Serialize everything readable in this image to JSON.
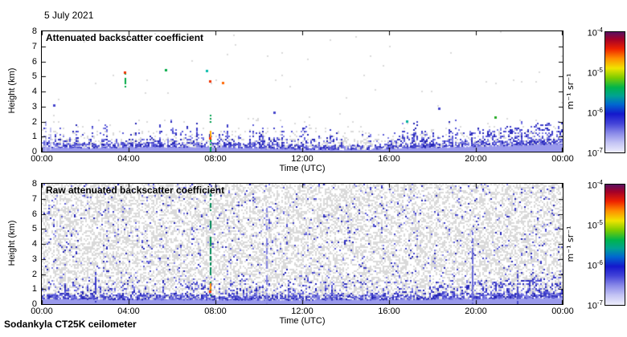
{
  "header": {
    "date_label": "5 July 2021"
  },
  "footer": {
    "instrument_label": "Sodankyla CT25K ceilometer"
  },
  "chart_data": [
    {
      "type": "heatmap",
      "title": "Attenuated backscatter coefficient",
      "xlabel": "Time (UTC)",
      "ylabel": "Height (km)",
      "x_ticks": [
        "00:00",
        "04:00",
        "08:00",
        "12:00",
        "16:00",
        "20:00",
        "00:00"
      ],
      "y_ticks": [
        "0",
        "1",
        "2",
        "3",
        "4",
        "5",
        "6",
        "7",
        "8"
      ],
      "xlim_hours": [
        0,
        24
      ],
      "ylim_km": [
        0,
        8
      ],
      "grid": false,
      "colorbar": {
        "unit": "m⁻¹ sr⁻¹",
        "tick_base": "10",
        "tick_exponents": [
          "-4",
          "-5",
          "-6",
          "-7"
        ],
        "scale": "log",
        "range": [
          1e-07,
          0.0001
        ],
        "gradient_stops": [
          [
            0.0,
            "#eeeefc"
          ],
          [
            0.08,
            "#c4c4f4"
          ],
          [
            0.16,
            "#8a8ae8"
          ],
          [
            0.24,
            "#4444d8"
          ],
          [
            0.32,
            "#1418cc"
          ],
          [
            0.4,
            "#0068d0"
          ],
          [
            0.47,
            "#00a292"
          ],
          [
            0.54,
            "#00b44c"
          ],
          [
            0.62,
            "#7ccc00"
          ],
          [
            0.7,
            "#f0e400"
          ],
          [
            0.78,
            "#ff9000"
          ],
          [
            0.86,
            "#ee2200"
          ],
          [
            0.94,
            "#a40028"
          ],
          [
            1.0,
            "#5a1060"
          ]
        ]
      },
      "render": {
        "seed": 42,
        "cell": 2,
        "gray_color": "#d9d9d9",
        "band_color": "#9a9aec",
        "blue_colors": [
          "#2222b4",
          "#3c3cc8",
          "#5a5ad8",
          "#8080e4"
        ],
        "gray_profile": [
          [
            0,
            0.45,
            0.5
          ],
          [
            0.45,
            0.9,
            0.28
          ],
          [
            0.9,
            1.4,
            0.1
          ],
          [
            1.4,
            2.2,
            0.02
          ],
          [
            2.2,
            8,
            0.003
          ]
        ],
        "blue_profile": [
          [
            0,
            0.35,
            0.22
          ],
          [
            0.35,
            0.8,
            0.1
          ],
          [
            0.8,
            1.4,
            0.04
          ],
          [
            1.4,
            8,
            0.0
          ]
        ],
        "spikes": {
          "count": 240,
          "hmin": 0.7,
          "hmax": 2.6,
          "density": 0.45
        },
        "quiet": {
          "t0": 12.4,
          "t1": 15.6,
          "factor": 0.35
        },
        "right_boost": {
          "t0": 15,
          "t1": 24,
          "density": 0.3,
          "h0": 1.0,
          "h1": 2.0
        },
        "band_edge_blue": 0.45,
        "band_profile": [
          [
            0,
            0.3
          ],
          [
            2,
            0.22
          ],
          [
            5,
            0.3
          ],
          [
            8,
            0.28
          ],
          [
            11,
            0.18
          ],
          [
            13,
            0.1
          ],
          [
            15,
            0.12
          ],
          [
            17,
            0.25
          ],
          [
            19,
            0.3
          ],
          [
            21,
            0.38
          ],
          [
            24,
            0.5
          ]
        ],
        "features": [
          {
            "kind": "vline",
            "t": 0.14,
            "h0": 0,
            "h1": 2.0,
            "color": "#b4b4f0",
            "dash": true
          },
          {
            "kind": "vline",
            "t": 0.38,
            "h0": 0,
            "h1": 1.7,
            "color": "#c2c2f2",
            "dash": true
          },
          {
            "kind": "vline",
            "t": 3.82,
            "h0": 4.3,
            "h1": 5.2,
            "color": "#00aa44",
            "dash": true
          },
          {
            "kind": "dot",
            "t": 3.82,
            "h": 5.3,
            "color": "#ee3300"
          },
          {
            "kind": "dot",
            "t": 5.7,
            "h": 5.45,
            "color": "#00aa44"
          },
          {
            "kind": "dot",
            "t": 7.6,
            "h": 5.4,
            "color": "#00bbaa"
          },
          {
            "kind": "dot",
            "t": 7.75,
            "h": 4.7,
            "color": "#ee3300"
          },
          {
            "kind": "dot",
            "t": 8.35,
            "h": 4.6,
            "color": "#ff6600"
          },
          {
            "kind": "vline",
            "t": 7.73,
            "h0": 0,
            "h1": 2.4,
            "color": "#00a050",
            "dash": true
          },
          {
            "kind": "vline",
            "t": 7.73,
            "h0": 1.0,
            "h1": 1.35,
            "color": "#ffaa00",
            "dash": false
          },
          {
            "kind": "dot",
            "t": 7.73,
            "h": 0.9,
            "color": "#ff3300"
          },
          {
            "kind": "dot",
            "t": 0.55,
            "h": 3.1,
            "color": "#4444cc"
          },
          {
            "kind": "dot",
            "t": 10.7,
            "h": 2.6,
            "color": "#4444cc"
          },
          {
            "kind": "dot",
            "t": 16.8,
            "h": 2.05,
            "color": "#00b0a0"
          },
          {
            "kind": "dot",
            "t": 18.3,
            "h": 2.9,
            "color": "#4444cc"
          },
          {
            "kind": "dot",
            "t": 20.9,
            "h": 2.3,
            "color": "#22aa22"
          }
        ]
      }
    },
    {
      "type": "heatmap",
      "title": "Raw attenuated backscatter coefficient",
      "xlabel": "Time (UTC)",
      "ylabel": "Height (km)",
      "x_ticks": [
        "00:00",
        "04:00",
        "08:00",
        "12:00",
        "16:00",
        "20:00",
        "00:00"
      ],
      "y_ticks": [
        "0",
        "1",
        "2",
        "3",
        "4",
        "5",
        "6",
        "7",
        "8"
      ],
      "xlim_hours": [
        0,
        24
      ],
      "ylim_km": [
        0,
        8
      ],
      "grid": false,
      "colorbar": {
        "unit": "m⁻¹ sr⁻¹",
        "tick_base": "10",
        "tick_exponents": [
          "-4",
          "-5",
          "-6",
          "-7"
        ],
        "scale": "log",
        "range": [
          1e-07,
          0.0001
        ],
        "gradient_stops": [
          [
            0.0,
            "#eeeefc"
          ],
          [
            0.08,
            "#c4c4f4"
          ],
          [
            0.16,
            "#8a8ae8"
          ],
          [
            0.24,
            "#4444d8"
          ],
          [
            0.32,
            "#1418cc"
          ],
          [
            0.4,
            "#0068d0"
          ],
          [
            0.47,
            "#00a292"
          ],
          [
            0.54,
            "#00b44c"
          ],
          [
            0.62,
            "#7ccc00"
          ],
          [
            0.7,
            "#f0e400"
          ],
          [
            0.78,
            "#ff9000"
          ],
          [
            0.86,
            "#ee2200"
          ],
          [
            0.94,
            "#a40028"
          ],
          [
            1.0,
            "#5a1060"
          ]
        ]
      },
      "render": {
        "seed": 777,
        "cell": 2,
        "gray_color": "#d9d9d9",
        "band_color": "#9a9aec",
        "blue_colors": [
          "#2222b4",
          "#3c3cc8",
          "#5a5ad8",
          "#8080e4"
        ],
        "gray_profile": [
          [
            0,
            0.5,
            0.55
          ],
          [
            0.5,
            8,
            0.47
          ]
        ],
        "blue_profile": [
          [
            0,
            0.35,
            0.5
          ],
          [
            0.35,
            0.7,
            0.25
          ],
          [
            0.7,
            1.6,
            0.1
          ],
          [
            1.6,
            8,
            0.045
          ]
        ],
        "spikes": {
          "count": 200,
          "hmin": 0.8,
          "hmax": 2.3,
          "density": 0.4
        },
        "quiet": null,
        "right_boost": {
          "t0": 15,
          "t1": 24,
          "density": 0.22,
          "h0": 1.0,
          "h1": 1.8
        },
        "band_edge_blue": 0.5,
        "band_profile": [
          [
            0,
            0.32
          ],
          [
            6,
            0.28
          ],
          [
            12,
            0.25
          ],
          [
            18,
            0.3
          ],
          [
            24,
            0.42
          ]
        ],
        "features": [
          {
            "kind": "vline",
            "t": 7.73,
            "h0": 0,
            "h1": 7.55,
            "color": "#008855",
            "dash": true
          },
          {
            "kind": "vline",
            "t": 7.73,
            "h0": 1.0,
            "h1": 1.3,
            "color": "#ff8800",
            "dash": false
          },
          {
            "kind": "dot",
            "t": 7.73,
            "h": 0.85,
            "color": "#ff3300"
          },
          {
            "kind": "vline",
            "t": 2.45,
            "h0": 0,
            "h1": 2.1,
            "color": "#3a3ac8",
            "dash": true
          },
          {
            "kind": "vline",
            "t": 10.35,
            "h0": 0,
            "h1": 6.3,
            "color": "#8888e4",
            "dash": true
          },
          {
            "kind": "vline",
            "t": 19.8,
            "h0": 0,
            "h1": 4.8,
            "color": "#6a6ad8",
            "dash": true
          },
          {
            "kind": "vline",
            "t": 21.9,
            "h0": 0,
            "h1": 2.2,
            "color": "#4a4acc",
            "dash": true
          }
        ]
      }
    }
  ]
}
